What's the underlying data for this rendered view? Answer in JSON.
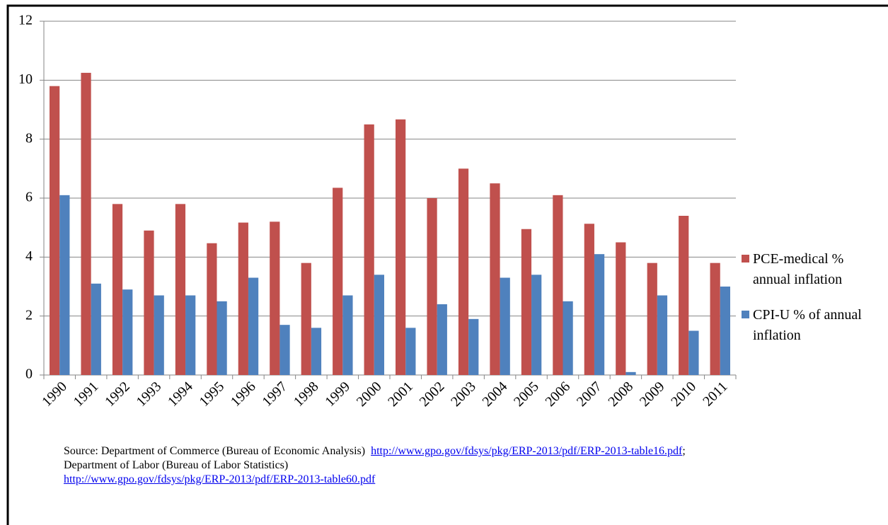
{
  "chart_data": {
    "type": "bar",
    "categories": [
      "1990",
      "1991",
      "1992",
      "1993",
      "1994",
      "1995",
      "1996",
      "1997",
      "1998",
      "1999",
      "2000",
      "2001",
      "2002",
      "2003",
      "2004",
      "2005",
      "2006",
      "2007",
      "2008",
      "2009",
      "2010",
      "2011"
    ],
    "series": [
      {
        "name": "PCE-medical % annual inflation",
        "color": "#c0504d",
        "values": [
          9.8,
          10.25,
          5.8,
          4.9,
          5.8,
          4.47,
          5.17,
          5.2,
          3.8,
          6.35,
          8.5,
          8.67,
          6.0,
          7.0,
          6.5,
          4.95,
          6.1,
          5.13,
          4.5,
          3.8,
          5.4,
          3.8
        ]
      },
      {
        "name": "CPI-U % of annual inflation",
        "color": "#4f81bd",
        "values": [
          6.1,
          3.1,
          2.9,
          2.7,
          2.7,
          2.5,
          3.3,
          1.7,
          1.6,
          2.7,
          3.4,
          1.6,
          2.4,
          1.9,
          3.3,
          3.4,
          2.5,
          4.1,
          0.1,
          2.7,
          1.5,
          3.0
        ]
      }
    ],
    "ylim": [
      0,
      12
    ],
    "yticks": [
      0,
      2,
      4,
      6,
      8,
      10,
      12
    ],
    "grid": true,
    "legend": "right"
  },
  "source": {
    "text1": "Source: Department of Commerce (Bureau of Economic Analysis)",
    "link1": "http://www.gpo.gov/fdsys/pkg/ERP-2013/pdf/ERP-2013-table16.pdf",
    "text2": "; Department of Labor (Bureau of Labor Statistics)",
    "link2": "http://www.gpo.gov/fdsys/pkg/ERP-2013/pdf/ERP-2013-table60.pdf"
  }
}
